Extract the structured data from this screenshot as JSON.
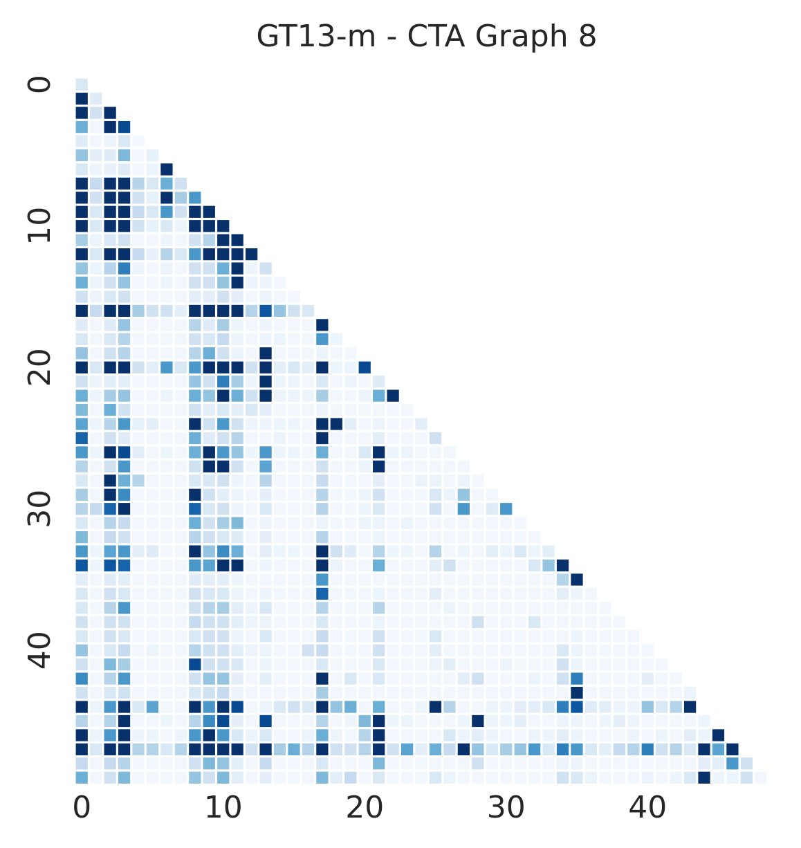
{
  "chart_data": {
    "type": "heatmap",
    "title": "GT13-m - CTA Graph 8",
    "size": 49,
    "mask": "lower-triangle-including-diagonal",
    "colormap": "Blues",
    "colorbar": false,
    "x_ticks": [
      0,
      10,
      20,
      30,
      40
    ],
    "y_ticks": [
      0,
      10,
      20,
      30,
      40
    ],
    "value_range": [
      0,
      1
    ],
    "approximate": true,
    "rows": [
      [
        0.15
      ],
      [
        1.0,
        0.12
      ],
      [
        1.0,
        0.2,
        1.0
      ],
      [
        0.5,
        0.03,
        1.0,
        0.9
      ],
      [
        0.12,
        0.03,
        0.06,
        0.15,
        0.02
      ],
      [
        0.4,
        0.1,
        0.12,
        0.45,
        0.03,
        0.08
      ],
      [
        0.15,
        0.05,
        0.08,
        0.12,
        0.03,
        0.05,
        1.0
      ],
      [
        1.0,
        0.25,
        1.0,
        1.0,
        0.3,
        0.15,
        0.5,
        0.2
      ],
      [
        1.0,
        0.2,
        1.0,
        1.0,
        0.2,
        0.08,
        1.0,
        0.35,
        0.6
      ],
      [
        1.0,
        0.15,
        1.0,
        1.0,
        0.25,
        0.15,
        0.6,
        0.2,
        1.0,
        1.0
      ],
      [
        1.0,
        0.15,
        1.0,
        1.0,
        0.2,
        0.08,
        0.15,
        0.06,
        1.0,
        1.0,
        1.0
      ],
      [
        0.35,
        0.05,
        0.15,
        0.2,
        0.03,
        0.03,
        0.05,
        0.03,
        0.2,
        0.3,
        1.0,
        1.0
      ],
      [
        1.0,
        0.15,
        1.0,
        1.0,
        0.25,
        0.08,
        0.3,
        0.15,
        0.6,
        1.0,
        1.0,
        1.0,
        1.0
      ],
      [
        0.4,
        0.06,
        0.3,
        0.7,
        0.05,
        0.03,
        0.06,
        0.03,
        0.2,
        0.2,
        0.5,
        1.0,
        0.05,
        0.2
      ],
      [
        0.5,
        0.06,
        0.2,
        0.4,
        0.03,
        0.03,
        0.05,
        0.03,
        0.2,
        0.2,
        0.4,
        1.0,
        0.05,
        0.06,
        0.03
      ],
      [
        0.2,
        0.05,
        0.15,
        0.2,
        0.03,
        0.03,
        0.03,
        0.03,
        0.1,
        0.1,
        0.2,
        0.1,
        0.03,
        0.06,
        0.03,
        0.03
      ],
      [
        1.0,
        0.25,
        1.0,
        1.0,
        0.35,
        0.2,
        0.2,
        0.1,
        1.0,
        1.0,
        1.0,
        1.0,
        0.3,
        0.85,
        0.4,
        0.2,
        0.15
      ],
      [
        0.12,
        0.03,
        0.12,
        0.4,
        0.03,
        0.03,
        0.03,
        0.03,
        0.3,
        0.12,
        0.35,
        0.06,
        0.03,
        0.05,
        0.03,
        0.03,
        0.03,
        1.0
      ],
      [
        0.15,
        0.03,
        0.15,
        0.3,
        0.03,
        0.03,
        0.03,
        0.03,
        0.2,
        0.15,
        0.25,
        0.06,
        0.03,
        0.05,
        0.06,
        0.03,
        0.03,
        0.6,
        0.05
      ],
      [
        0.4,
        0.03,
        0.2,
        0.3,
        0.03,
        0.03,
        0.03,
        0.03,
        0.3,
        0.5,
        0.2,
        0.06,
        0.03,
        1.0,
        0.03,
        0.03,
        0.03,
        0.06,
        0.03,
        0.03
      ],
      [
        1.0,
        0.15,
        1.0,
        1.0,
        0.2,
        0.1,
        0.6,
        0.15,
        0.6,
        1.0,
        1.0,
        1.0,
        0.2,
        1.0,
        0.1,
        0.15,
        0.1,
        1.0,
        0.05,
        0.05,
        0.9
      ],
      [
        0.2,
        0.05,
        0.1,
        0.1,
        0.03,
        0.03,
        0.03,
        0.03,
        0.4,
        0.2,
        0.7,
        0.35,
        0.05,
        1.0,
        0.05,
        0.05,
        0.03,
        0.15,
        0.03,
        0.05,
        0.03,
        0.12
      ],
      [
        0.5,
        0.05,
        0.35,
        0.4,
        0.03,
        0.03,
        0.05,
        0.03,
        0.5,
        0.4,
        1.0,
        0.5,
        0.2,
        1.0,
        0.06,
        0.06,
        0.05,
        0.35,
        0.03,
        0.03,
        0.05,
        0.5,
        1.0
      ],
      [
        0.45,
        0.03,
        0.5,
        0.2,
        0.03,
        0.03,
        0.03,
        0.03,
        0.2,
        0.1,
        0.15,
        0.1,
        0.15,
        0.1,
        0.03,
        0.03,
        0.03,
        0.05,
        0.03,
        0.03,
        0.03,
        0.03,
        0.03,
        0.03
      ],
      [
        0.55,
        0.05,
        0.3,
        0.6,
        0.08,
        0.1,
        0.03,
        0.03,
        1.0,
        0.2,
        0.6,
        0.2,
        0.05,
        0.05,
        0.05,
        0.05,
        0.03,
        1.0,
        1.0,
        0.1,
        0.03,
        0.06,
        0.03,
        0.03,
        0.1
      ],
      [
        0.8,
        0.03,
        0.2,
        0.12,
        0.03,
        0.03,
        0.03,
        0.03,
        0.5,
        0.12,
        0.2,
        0.3,
        0.03,
        0.03,
        0.06,
        0.03,
        0.03,
        1.0,
        0.03,
        0.03,
        0.03,
        0.1,
        0.03,
        0.03,
        0.03,
        0.2
      ],
      [
        0.6,
        0.05,
        1.0,
        0.9,
        0.1,
        0.03,
        0.05,
        0.03,
        0.5,
        1.0,
        0.6,
        0.4,
        0.05,
        0.6,
        0.05,
        0.05,
        0.03,
        0.5,
        0.03,
        0.03,
        0.15,
        1.0,
        0.05,
        0.06,
        0.03,
        0.03,
        0.03
      ],
      [
        0.3,
        0.03,
        0.2,
        0.6,
        0.03,
        0.03,
        0.03,
        0.03,
        0.2,
        1.0,
        1.0,
        0.2,
        0.03,
        0.55,
        0.03,
        0.03,
        0.03,
        0.2,
        0.03,
        0.03,
        0.05,
        1.0,
        0.03,
        0.03,
        0.03,
        0.03,
        0.03,
        0.03
      ],
      [
        0.15,
        0.03,
        1.0,
        0.5,
        0.3,
        0.03,
        0.03,
        0.03,
        0.15,
        0.15,
        0.2,
        0.05,
        0.03,
        0.3,
        0.03,
        0.03,
        0.03,
        0.25,
        0.03,
        0.03,
        0.03,
        0.1,
        0.03,
        0.03,
        0.06,
        0.06,
        0.03,
        0.06,
        0.03
      ],
      [
        0.35,
        0.03,
        1.0,
        0.65,
        0.03,
        0.03,
        0.03,
        0.03,
        1.0,
        0.2,
        0.1,
        0.05,
        0.03,
        0.1,
        0.03,
        0.03,
        0.03,
        0.3,
        0.03,
        0.03,
        0.06,
        0.2,
        0.03,
        0.03,
        0.03,
        0.15,
        0.06,
        0.4,
        0.03,
        0.03
      ],
      [
        0.3,
        0.25,
        0.8,
        1.0,
        0.03,
        0.03,
        0.03,
        0.03,
        0.8,
        0.15,
        0.2,
        0.05,
        0.03,
        0.15,
        0.03,
        0.03,
        0.03,
        0.3,
        0.03,
        0.03,
        0.05,
        0.15,
        0.03,
        0.03,
        0.03,
        0.2,
        0.03,
        0.6,
        0.03,
        0.12,
        0.6
      ],
      [
        0.15,
        0.03,
        0.3,
        0.25,
        0.03,
        0.03,
        0.03,
        0.03,
        0.5,
        0.2,
        0.35,
        0.45,
        0.03,
        0.06,
        0.03,
        0.03,
        0.03,
        0.06,
        0.03,
        0.03,
        0.05,
        0.06,
        0.03,
        0.05,
        0.03,
        0.03,
        0.03,
        0.03,
        0.03,
        0.03,
        0.03,
        0.03
      ],
      [
        0.45,
        0.03,
        0.25,
        0.2,
        0.03,
        0.03,
        0.03,
        0.03,
        0.3,
        0.2,
        0.15,
        0.12,
        0.03,
        0.1,
        0.03,
        0.03,
        0.03,
        0.3,
        0.03,
        0.03,
        0.03,
        0.05,
        0.03,
        0.03,
        0.03,
        0.03,
        0.03,
        0.03,
        0.03,
        0.03,
        0.03,
        0.03,
        0.03
      ],
      [
        0.6,
        0.05,
        0.55,
        0.6,
        0.1,
        0.12,
        0.03,
        0.03,
        1.0,
        0.4,
        0.65,
        0.5,
        0.03,
        0.1,
        0.05,
        0.05,
        0.03,
        1.0,
        0.2,
        0.12,
        0.03,
        0.3,
        0.05,
        0.05,
        0.03,
        0.3,
        0.03,
        0.05,
        0.03,
        0.1,
        0.06,
        0.15,
        0.05,
        0.1
      ],
      [
        0.85,
        0.05,
        0.85,
        0.8,
        0.03,
        0.03,
        0.03,
        0.03,
        0.6,
        0.55,
        1.0,
        1.0,
        0.03,
        0.05,
        0.03,
        0.03,
        0.03,
        1.0,
        0.06,
        0.03,
        0.03,
        0.5,
        0.03,
        0.03,
        0.03,
        0.1,
        0.2,
        0.03,
        0.03,
        0.03,
        0.03,
        0.03,
        0.15,
        0.4,
        1.0
      ],
      [
        0.1,
        0.03,
        0.12,
        0.1,
        0.03,
        0.03,
        0.03,
        0.03,
        0.12,
        0.1,
        0.1,
        0.05,
        0.03,
        0.03,
        0.03,
        0.03,
        0.03,
        0.6,
        0.03,
        0.03,
        0.03,
        0.03,
        0.03,
        0.03,
        0.03,
        0.03,
        0.03,
        0.03,
        0.03,
        0.03,
        0.03,
        0.03,
        0.03,
        0.03,
        0.3,
        1.0
      ],
      [
        0.15,
        0.03,
        0.2,
        0.15,
        0.03,
        0.03,
        0.03,
        0.03,
        0.2,
        0.15,
        0.15,
        0.06,
        0.03,
        0.05,
        0.03,
        0.03,
        0.03,
        0.8,
        0.03,
        0.03,
        0.03,
        0.05,
        0.03,
        0.03,
        0.03,
        0.1,
        0.03,
        0.03,
        0.03,
        0.03,
        0.03,
        0.03,
        0.03,
        0.03,
        0.1,
        0.05,
        0.03
      ],
      [
        0.15,
        0.03,
        0.3,
        0.6,
        0.03,
        0.03,
        0.03,
        0.03,
        0.2,
        0.3,
        0.35,
        0.1,
        0.05,
        0.15,
        0.03,
        0.03,
        0.03,
        0.3,
        0.03,
        0.03,
        0.03,
        0.3,
        0.03,
        0.03,
        0.03,
        0.03,
        0.05,
        0.03,
        0.03,
        0.03,
        0.03,
        0.03,
        0.03,
        0.03,
        0.03,
        0.03,
        0.03,
        0.03
      ],
      [
        0.2,
        0.03,
        0.2,
        0.2,
        0.03,
        0.03,
        0.03,
        0.03,
        0.25,
        0.2,
        0.2,
        0.1,
        0.05,
        0.06,
        0.03,
        0.03,
        0.03,
        0.15,
        0.03,
        0.03,
        0.03,
        0.06,
        0.03,
        0.03,
        0.03,
        0.03,
        0.03,
        0.03,
        0.2,
        0.03,
        0.03,
        0.03,
        0.15,
        0.03,
        0.03,
        0.03,
        0.03,
        0.03,
        0.03
      ],
      [
        0.15,
        0.03,
        0.2,
        0.15,
        0.03,
        0.03,
        0.03,
        0.03,
        0.15,
        0.2,
        0.2,
        0.06,
        0.03,
        0.15,
        0.03,
        0.03,
        0.03,
        0.25,
        0.03,
        0.03,
        0.03,
        0.2,
        0.03,
        0.03,
        0.03,
        0.15,
        0.03,
        0.03,
        0.03,
        0.03,
        0.03,
        0.03,
        0.03,
        0.03,
        0.03,
        0.05,
        0.03,
        0.03,
        0.03,
        0.03
      ],
      [
        0.4,
        0.03,
        0.15,
        0.25,
        0.03,
        0.05,
        0.03,
        0.03,
        0.3,
        0.2,
        0.2,
        0.1,
        0.05,
        0.06,
        0.03,
        0.03,
        0.2,
        0.25,
        0.03,
        0.03,
        0.03,
        0.2,
        0.03,
        0.03,
        0.03,
        0.1,
        0.03,
        0.03,
        0.03,
        0.03,
        0.03,
        0.03,
        0.03,
        0.03,
        0.15,
        0.06,
        0.03,
        0.03,
        0.03,
        0.03,
        0.03
      ],
      [
        0.2,
        0.03,
        0.45,
        0.35,
        0.03,
        0.03,
        0.03,
        0.03,
        0.9,
        0.2,
        0.2,
        0.15,
        0.03,
        0.06,
        0.03,
        0.03,
        0.03,
        0.15,
        0.03,
        0.03,
        0.03,
        0.15,
        0.03,
        0.03,
        0.03,
        0.06,
        0.1,
        0.03,
        0.03,
        0.03,
        0.06,
        0.03,
        0.03,
        0.03,
        0.2,
        0.05,
        0.03,
        0.03,
        0.03,
        0.03,
        0.03,
        0.03
      ],
      [
        0.65,
        0.03,
        0.3,
        0.6,
        0.03,
        0.03,
        0.03,
        0.03,
        0.2,
        0.4,
        0.4,
        0.1,
        0.03,
        0.1,
        0.03,
        0.03,
        0.03,
        1.0,
        0.03,
        0.15,
        0.03,
        0.15,
        0.03,
        0.03,
        0.03,
        0.03,
        0.03,
        0.1,
        0.2,
        0.03,
        0.03,
        0.03,
        0.06,
        0.03,
        0.2,
        0.7,
        0.03,
        0.03,
        0.03,
        0.03,
        0.1,
        0.03,
        0.03
      ],
      [
        0.2,
        0.03,
        0.15,
        0.2,
        0.03,
        0.03,
        0.03,
        0.03,
        0.15,
        0.2,
        0.25,
        0.06,
        0.03,
        0.03,
        0.03,
        0.03,
        0.03,
        0.35,
        0.03,
        0.03,
        0.03,
        0.03,
        0.03,
        0.03,
        0.03,
        0.03,
        0.03,
        0.03,
        0.03,
        0.03,
        0.03,
        0.03,
        0.03,
        0.03,
        0.03,
        1.0,
        0.03,
        0.03,
        0.03,
        0.03,
        0.03,
        0.03,
        0.03,
        0.06
      ],
      [
        1.0,
        0.06,
        0.6,
        1.0,
        0.15,
        0.55,
        0.03,
        0.03,
        1.0,
        0.6,
        1.0,
        0.9,
        0.03,
        0.06,
        0.15,
        0.2,
        0.15,
        1.0,
        0.4,
        0.5,
        0.03,
        0.5,
        0.03,
        0.03,
        0.05,
        1.0,
        0.3,
        0.03,
        0.03,
        0.06,
        0.05,
        0.1,
        0.1,
        0.15,
        0.7,
        0.85,
        0.12,
        0.1,
        0.06,
        0.06,
        0.4,
        0.15,
        0.3,
        1.0
      ],
      [
        0.3,
        0.03,
        0.3,
        1.0,
        0.03,
        0.03,
        0.05,
        0.03,
        0.3,
        0.65,
        0.9,
        0.1,
        0.03,
        0.9,
        0.03,
        0.03,
        0.03,
        0.3,
        0.03,
        0.05,
        0.45,
        1.0,
        0.05,
        0.06,
        0.03,
        0.03,
        0.03,
        0.05,
        1.0,
        0.05,
        0.05,
        0.1,
        0.03,
        0.03,
        0.05,
        0.06,
        0.03,
        0.05,
        0.1,
        0.05,
        0.03,
        0.03,
        0.03,
        0.03,
        0.05
      ],
      [
        1.0,
        0.06,
        0.6,
        1.0,
        0.06,
        0.06,
        0.03,
        0.05,
        0.6,
        1.0,
        0.6,
        0.15,
        0.05,
        0.15,
        0.03,
        0.03,
        0.06,
        0.5,
        0.05,
        0.03,
        0.3,
        1.0,
        0.03,
        0.03,
        0.03,
        0.03,
        0.15,
        0.05,
        0.1,
        0.05,
        0.03,
        0.03,
        0.06,
        0.05,
        0.1,
        0.06,
        0.03,
        0.03,
        0.03,
        0.05,
        0.03,
        0.06,
        0.03,
        0.1,
        0.06,
        1.0
      ],
      [
        1.0,
        0.15,
        1.0,
        1.0,
        0.3,
        0.3,
        0.15,
        0.3,
        1.0,
        1.0,
        1.0,
        1.0,
        0.2,
        1.0,
        0.35,
        0.5,
        0.3,
        1.0,
        0.2,
        0.2,
        0.3,
        1.0,
        0.2,
        0.55,
        0.1,
        0.5,
        0.25,
        1.0,
        0.4,
        0.15,
        0.35,
        0.4,
        0.6,
        0.15,
        0.7,
        0.6,
        0.15,
        0.1,
        0.25,
        0.3,
        0.7,
        0.2,
        0.3,
        0.15,
        1.0,
        0.55,
        1.0
      ],
      [
        0.25,
        0.03,
        0.25,
        0.3,
        0.03,
        0.03,
        0.03,
        0.03,
        0.2,
        0.45,
        0.4,
        0.1,
        0.03,
        0.25,
        0.03,
        0.03,
        0.03,
        0.15,
        0.03,
        0.03,
        0.03,
        0.45,
        0.03,
        0.03,
        0.03,
        0.03,
        0.03,
        0.03,
        0.2,
        0.03,
        0.03,
        0.03,
        0.03,
        0.03,
        0.05,
        0.05,
        0.03,
        0.03,
        0.03,
        0.03,
        0.03,
        0.03,
        0.03,
        0.03,
        0.1,
        0.1,
        0.6,
        0.2
      ],
      [
        0.5,
        0.03,
        0.2,
        0.45,
        0.03,
        0.03,
        0.03,
        0.03,
        0.4,
        0.2,
        0.45,
        0.1,
        0.03,
        0.1,
        0.03,
        0.03,
        0.03,
        0.45,
        0.1,
        0.25,
        0.03,
        0.15,
        0.03,
        0.03,
        0.03,
        0.15,
        0.06,
        0.03,
        0.03,
        0.03,
        0.03,
        0.03,
        0.03,
        0.03,
        0.2,
        0.15,
        0.06,
        0.03,
        0.03,
        0.03,
        0.06,
        0.03,
        0.05,
        0.15,
        1.0,
        0.05,
        0.05,
        0.2,
        0.03
      ]
    ]
  }
}
